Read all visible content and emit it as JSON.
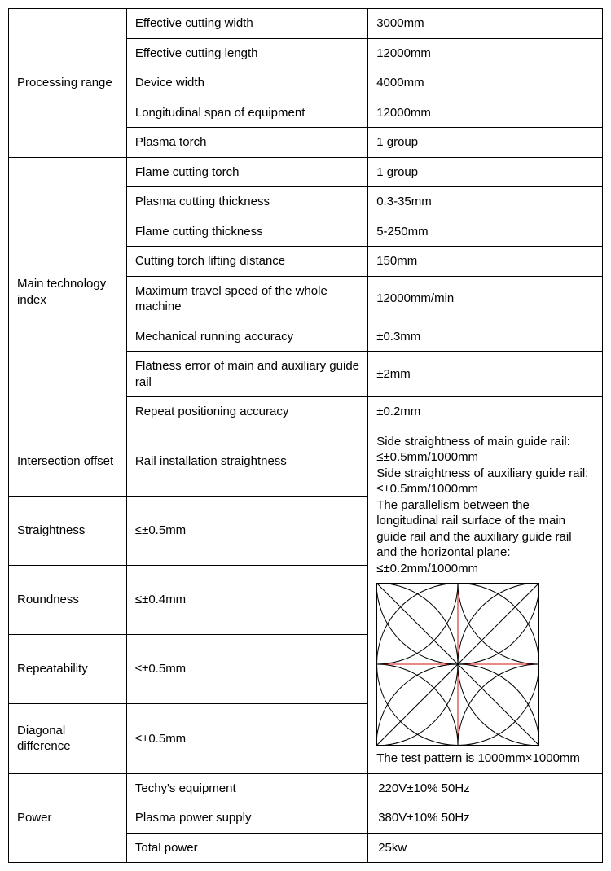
{
  "sections": {
    "processing_range": {
      "label": "Processing range",
      "rows": [
        {
          "param": "Effective cutting width",
          "value": "3000mm"
        },
        {
          "param": "Effective cutting length",
          "value": "12000mm"
        },
        {
          "param": "Device width",
          "value": "4000mm"
        },
        {
          "param": "Longitudinal span of equipment",
          "value": "12000mm"
        },
        {
          "param": "Plasma torch",
          "value": "1 group"
        }
      ]
    },
    "main_tech": {
      "label": "Main technology index",
      "rows": [
        {
          "param": "Flame cutting torch",
          "value": "1 group"
        },
        {
          "param": "Plasma cutting thickness",
          "value": "0.3-35mm"
        },
        {
          "param": "Flame cutting thickness",
          "value": "5-250mm"
        },
        {
          "param": "Cutting torch lifting distance",
          "value": "150mm"
        },
        {
          "param": "Maximum travel speed of the whole machine",
          "value": "12000mm/min",
          "small": true
        },
        {
          "param": "Mechanical running accuracy",
          "value": "±0.3mm"
        },
        {
          "param": "Flatness error of main and auxiliary guide rail",
          "value": "±2mm",
          "small": true
        },
        {
          "param": "Repeat positioning accuracy",
          "value": " ±0.2mm"
        }
      ]
    },
    "accuracy": {
      "rows": [
        {
          "cat": "Intersection offset",
          "param": "Rail installation straightness",
          "cat_small": true
        },
        {
          "cat": "Straightness",
          "param": "≤±0.5mm"
        },
        {
          "cat": "Roundness",
          "param": "≤±0.4mm"
        },
        {
          "cat": "Repeatability",
          "param": "≤±0.5mm"
        },
        {
          "cat": "Diagonal difference",
          "param": "≤±0.5mm",
          "cat_small": true
        }
      ],
      "merged_text": "Side straightness of main guide rail: ≤±0.5mm/1000mm\nSide straightness of auxiliary guide rail: ≤±0.5mm/1000mm\nThe parallelism between the longitudinal rail surface of the main guide rail and the auxiliary guide rail and the horizontal plane: ≤±0.2mm/1000mm",
      "caption": "The test pattern is 1000mm×1000mm"
    },
    "power": {
      "label": "Power",
      "rows": [
        {
          "param": "Techy's equipment",
          "value": "220V±10% 50Hz"
        },
        {
          "param": "Plasma power supply",
          "value": "380V±10%   50Hz"
        },
        {
          "param": "Total power",
          "value": "25kw"
        }
      ]
    }
  },
  "diagram": {
    "size": 200,
    "stroke": "#000000",
    "axis_stroke": "#d01010",
    "stroke_width": 1
  }
}
